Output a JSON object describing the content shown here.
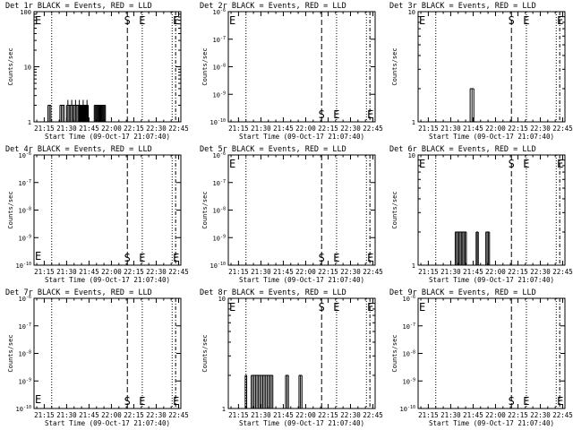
{
  "start_time": "Start Time (09-Oct-17 21:07:40)",
  "y_label": "Counts/sec",
  "x_ticks": [
    "21:15",
    "21:30",
    "21:45",
    "22:00",
    "22:15",
    "22:30",
    "22:45"
  ],
  "marker_labels": {
    "E": "E",
    "S": "S"
  },
  "colors": {
    "axis": "#000000",
    "events": "#000000",
    "lld": "#ff0000",
    "background": "#ffffff"
  },
  "chart_data": [
    {
      "type": "line",
      "title": "Det 1r BLACK = Events, RED = LLD",
      "xlabel": "Start Time (09-Oct-17 21:07:40)",
      "ylabel": "Counts/sec",
      "yscale": "log",
      "ylim": [
        1,
        100
      ],
      "y_ticks": [
        "1",
        "10",
        "100"
      ],
      "legend": "none",
      "events_blocks": [
        {
          "t0": "21:17:30",
          "t1": "21:19:30",
          "level": 2,
          "spikes": 3
        },
        {
          "t0": "21:25:30",
          "t1": "21:28:30",
          "level": 2,
          "spikes": 4
        },
        {
          "t0": "21:30:00",
          "t1": "21:44:30",
          "level": 2,
          "spikes": 18,
          "peak": 2.5,
          "filled_from": "21:38:00"
        },
        {
          "t0": "21:48:30",
          "t1": "21:56:00",
          "level": 2,
          "spikes": 14
        }
      ]
    },
    {
      "type": "line",
      "title": "Det 2r BLACK = Events, RED = LLD",
      "xlabel": "Start Time (09-Oct-17 21:07:40)",
      "ylabel": "Counts/sec",
      "yscale": "log",
      "ylim": [
        1e-06,
        1e-10
      ],
      "y_ticks": [
        "10^-10",
        "10^-9",
        "10^-8",
        "10^-7",
        "10^-6"
      ],
      "legend": "none",
      "events_blocks": []
    },
    {
      "type": "line",
      "title": "Det 3r BLACK = Events, RED = LLD",
      "xlabel": "Start Time (09-Oct-17 21:07:40)",
      "ylabel": "Counts/sec",
      "yscale": "log",
      "ylim": [
        1,
        10
      ],
      "y_ticks": [
        "1",
        "10"
      ],
      "legend": "none",
      "events_blocks": [
        {
          "t0": "21:43:00",
          "t1": "21:45:30",
          "level": 2,
          "spikes": 3
        }
      ]
    },
    {
      "type": "line",
      "title": "Det 4r BLACK = Events, RED = LLD",
      "xlabel": "Start Time (09-Oct-17 21:07:40)",
      "ylabel": "Counts/sec",
      "yscale": "log",
      "ylim": [
        1e-06,
        1e-10
      ],
      "y_ticks": [
        "10^-10",
        "10^-9",
        "10^-8",
        "10^-7",
        "10^-6"
      ],
      "legend": "none",
      "events_blocks": []
    },
    {
      "type": "line",
      "title": "Det 5r BLACK = Events, RED = LLD",
      "xlabel": "Start Time (09-Oct-17 21:07:40)",
      "ylabel": "Counts/sec",
      "yscale": "log",
      "ylim": [
        1e-06,
        1e-10
      ],
      "y_ticks": [
        "10^-10",
        "10^-9",
        "10^-8",
        "10^-7",
        "10^-6"
      ],
      "legend": "none",
      "events_blocks": []
    },
    {
      "type": "line",
      "title": "Det 6r BLACK = Events, RED = LLD",
      "xlabel": "Start Time (09-Oct-17 21:07:40)",
      "ylabel": "Counts/sec",
      "yscale": "log",
      "ylim": [
        1,
        10
      ],
      "y_ticks": [
        "1",
        "10"
      ],
      "legend": "none",
      "events_blocks": [
        {
          "t0": "21:33:00",
          "t1": "21:40:30",
          "level": 2,
          "spikes": 10
        },
        {
          "t0": "21:47:00",
          "t1": "21:48:30",
          "level": 2,
          "spikes": 3
        },
        {
          "t0": "21:53:30",
          "t1": "21:56:00",
          "level": 2,
          "spikes": 4
        }
      ]
    },
    {
      "type": "line",
      "title": "Det 7r BLACK = Events, RED = LLD",
      "xlabel": "Start Time (09-Oct-17 21:07:40)",
      "ylabel": "Counts/sec",
      "yscale": "log",
      "ylim": [
        1e-06,
        1e-10
      ],
      "y_ticks": [
        "10^-10",
        "10^-9",
        "10^-8",
        "10^-7",
        "10^-6"
      ],
      "legend": "none",
      "events_blocks": []
    },
    {
      "type": "line",
      "title": "Det 8r BLACK = Events, RED = LLD",
      "xlabel": "Start Time (09-Oct-17 21:07:40)",
      "ylabel": "Counts/sec",
      "yscale": "log",
      "ylim": [
        1,
        10
      ],
      "y_ticks": [
        "1",
        "10"
      ],
      "legend": "none",
      "events_blocks": [
        {
          "t0": "21:19:30",
          "t1": "21:20:30",
          "level": 2,
          "spikes": 2
        },
        {
          "t0": "21:23:30",
          "t1": "21:38:00",
          "level": 2,
          "spikes": 16
        },
        {
          "t0": "21:46:30",
          "t1": "21:48:30",
          "level": 2,
          "spikes": 3
        },
        {
          "t0": "21:55:30",
          "t1": "21:57:30",
          "level": 2,
          "spikes": 3
        }
      ]
    },
    {
      "type": "line",
      "title": "Det 9r BLACK = Events, RED = LLD",
      "xlabel": "Start Time (09-Oct-17 21:07:40)",
      "ylabel": "Counts/sec",
      "yscale": "log",
      "ylim": [
        1e-06,
        1e-10
      ],
      "y_ticks": [
        "10^-10",
        "10^-9",
        "10^-8",
        "10^-7",
        "10^-6"
      ],
      "legend": "none",
      "events_blocks": []
    }
  ],
  "markers": {
    "dotted": [
      "21:20:00",
      "22:20:40",
      "22:40:40"
    ],
    "dashed": [
      "22:10:40"
    ],
    "dash_dot": [
      "22:43:00"
    ],
    "E_at": "21:07:40",
    "S_at": "22:10:40",
    "E2_at": "22:20:40",
    "E3_at": "22:43:00"
  }
}
